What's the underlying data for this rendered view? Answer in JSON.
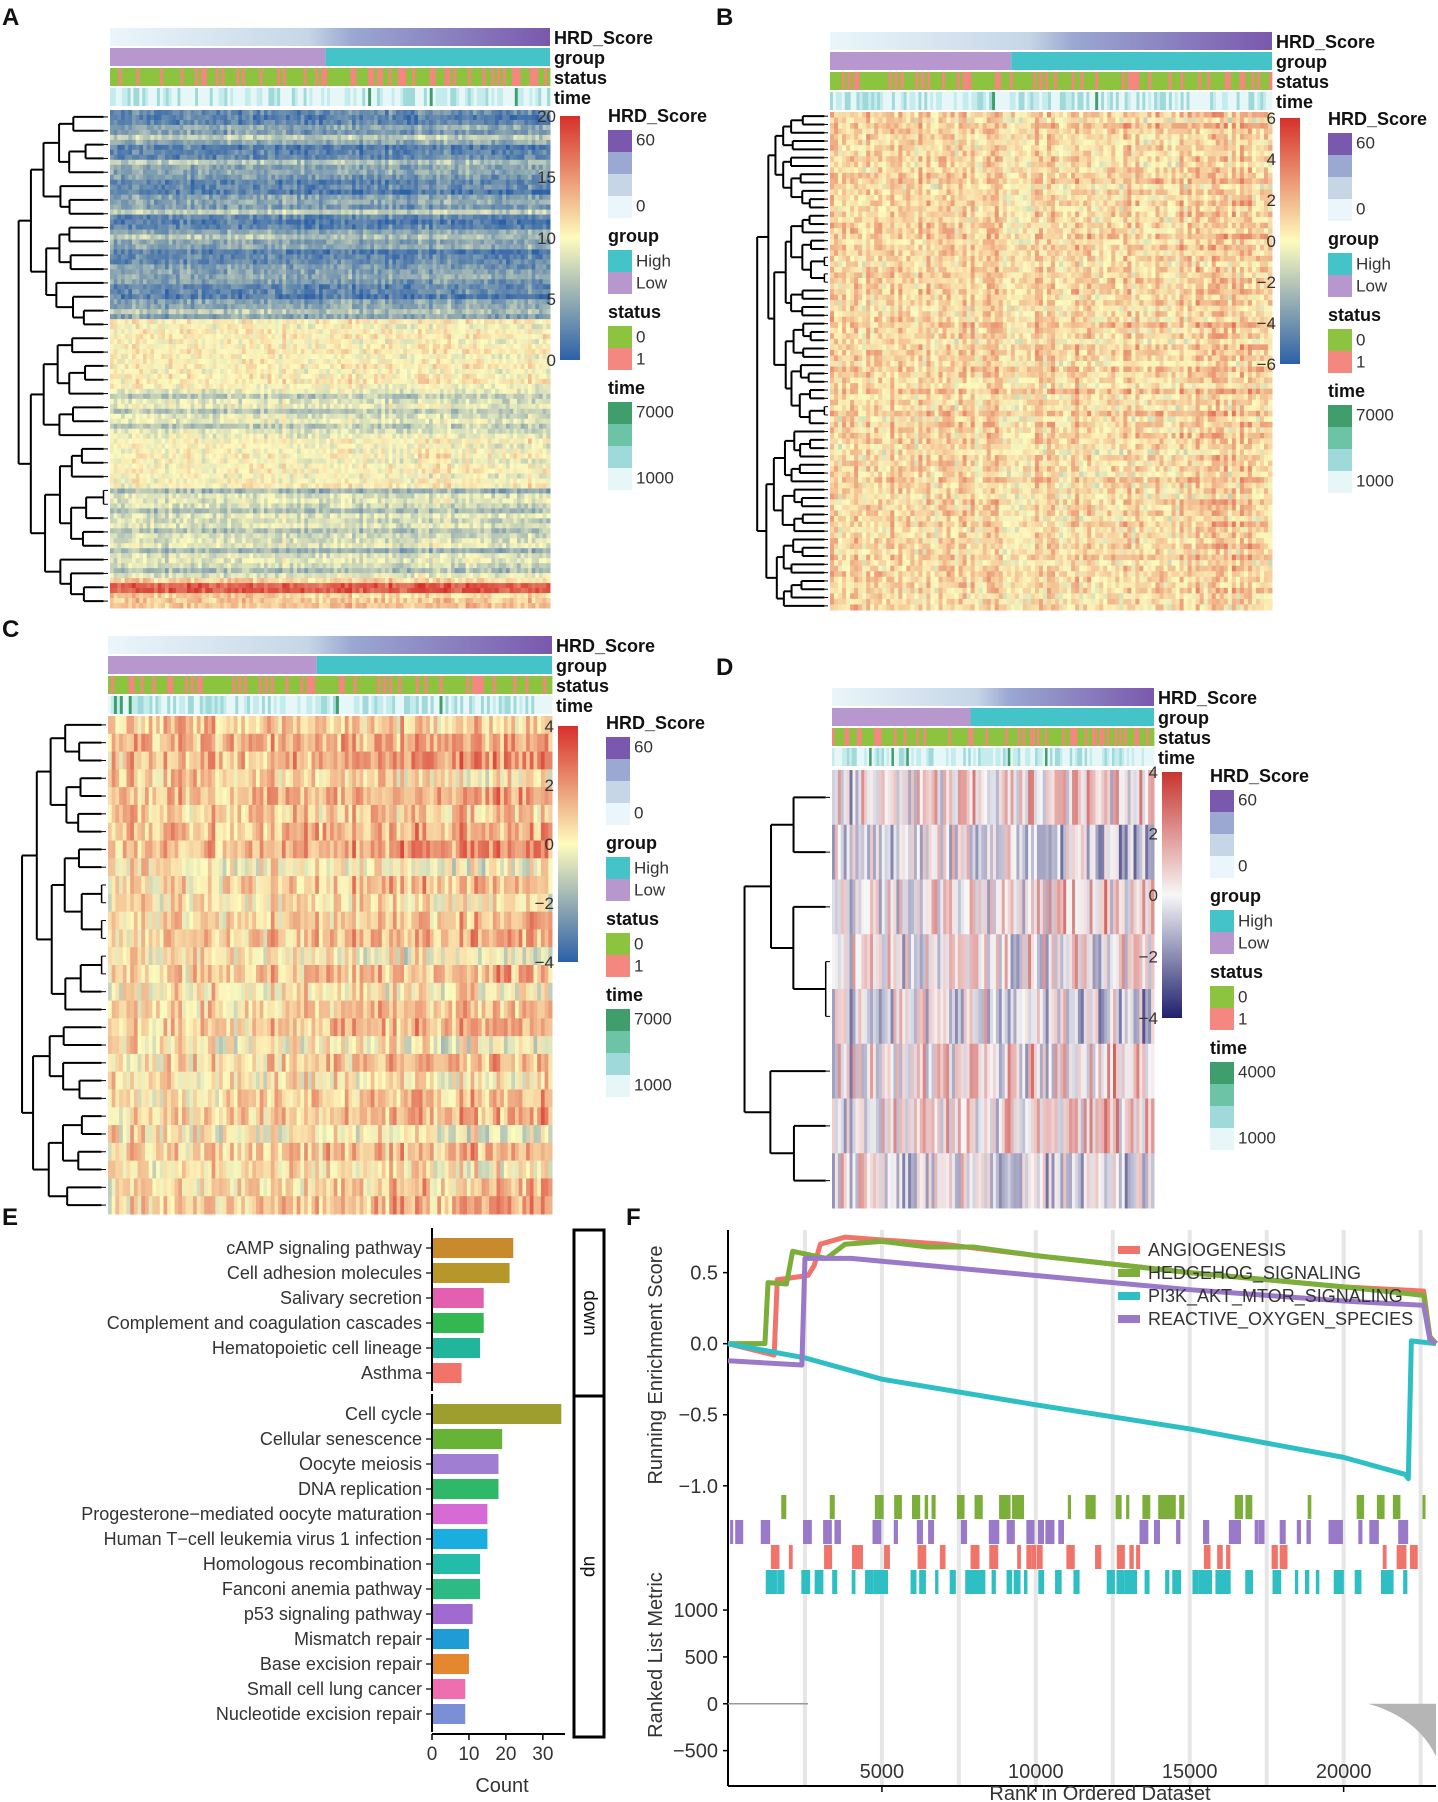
{
  "panels": [
    {
      "id": "A",
      "label": "A"
    },
    {
      "id": "B",
      "label": "B"
    },
    {
      "id": "C",
      "label": "C"
    },
    {
      "id": "D",
      "label": "D"
    },
    {
      "id": "E",
      "label": "E"
    },
    {
      "id": "F",
      "label": "F"
    }
  ],
  "chart_data": [
    {
      "panel": "A",
      "type": "heatmap",
      "annotation_tracks": [
        "HRD_Score",
        "group",
        "status",
        "time"
      ],
      "colorbar": {
        "ticks": [
          "20",
          "15",
          "10",
          "5",
          "0"
        ],
        "range": [
          0,
          20
        ],
        "palette": [
          "#2c60a8",
          "#fefbbe",
          "#d7302a"
        ]
      },
      "legends": [
        {
          "title": "HRD_Score",
          "labels": [
            "60",
            "0"
          ]
        },
        {
          "title": "group",
          "labels": [
            "High",
            "Low"
          ]
        },
        {
          "title": "status",
          "labels": [
            "0",
            "1"
          ]
        },
        {
          "title": "time",
          "labels": [
            "7000",
            "1000"
          ]
        }
      ]
    },
    {
      "panel": "B",
      "type": "heatmap",
      "annotation_tracks": [
        "HRD_Score",
        "group",
        "status",
        "time"
      ],
      "colorbar": {
        "ticks": [
          "6",
          "4",
          "2",
          "0",
          "−2",
          "−4",
          "−6"
        ],
        "range": [
          -6,
          6
        ],
        "palette": [
          "#2c60a8",
          "#fefbbe",
          "#d7302a"
        ]
      },
      "legends": [
        {
          "title": "HRD_Score",
          "labels": [
            "60",
            "0"
          ]
        },
        {
          "title": "group",
          "labels": [
            "High",
            "Low"
          ]
        },
        {
          "title": "status",
          "labels": [
            "0",
            "1"
          ]
        },
        {
          "title": "time",
          "labels": [
            "7000",
            "1000"
          ]
        }
      ]
    },
    {
      "panel": "C",
      "type": "heatmap",
      "annotation_tracks": [
        "HRD_Score",
        "group",
        "status",
        "time"
      ],
      "colorbar": {
        "ticks": [
          "4",
          "2",
          "0",
          "−2",
          "−4"
        ],
        "range": [
          -4,
          4
        ],
        "palette": [
          "#2c60a8",
          "#fefbbe",
          "#d7302a"
        ]
      },
      "legends": [
        {
          "title": "HRD_Score",
          "labels": [
            "60",
            "0"
          ]
        },
        {
          "title": "group",
          "labels": [
            "High",
            "Low"
          ]
        },
        {
          "title": "status",
          "labels": [
            "0",
            "1"
          ]
        },
        {
          "title": "time",
          "labels": [
            "7000",
            "1000"
          ]
        }
      ]
    },
    {
      "panel": "D",
      "type": "heatmap",
      "annotation_tracks": [
        "HRD_Score",
        "group",
        "status",
        "time"
      ],
      "colorbar": {
        "ticks": [
          "4",
          "2",
          "0",
          "−2",
          "−4"
        ],
        "range": [
          -4,
          4
        ],
        "palette": [
          "#1f1f6e",
          "#f7f7f7",
          "#c8342f"
        ]
      },
      "legends": [
        {
          "title": "HRD_Score",
          "labels": [
            "60",
            "0"
          ]
        },
        {
          "title": "group",
          "labels": [
            "High",
            "Low"
          ]
        },
        {
          "title": "status",
          "labels": [
            "0",
            "1"
          ]
        },
        {
          "title": "time",
          "labels": [
            "4000",
            "1000"
          ]
        }
      ]
    },
    {
      "panel": "E",
      "type": "bar",
      "orientation": "horizontal",
      "xlabel": "Count",
      "xticks": [
        "0",
        "10",
        "20",
        "30"
      ],
      "xlim": [
        0,
        36
      ],
      "groups": [
        {
          "name": "down",
          "items": [
            {
              "label": "cAMP signaling pathway",
              "value": 22,
              "color": "#c98a2c"
            },
            {
              "label": "Cell adhesion molecules",
              "value": 21,
              "color": "#b8972a"
            },
            {
              "label": "Salivary secretion",
              "value": 14,
              "color": "#e35faf"
            },
            {
              "label": "Complement and coagulation cascades",
              "value": 14,
              "color": "#32b751"
            },
            {
              "label": "Hematopoietic cell lineage",
              "value": 13,
              "color": "#21b59c"
            },
            {
              "label": "Asthma",
              "value": 8,
              "color": "#f0746a"
            }
          ]
        },
        {
          "name": "up",
          "items": [
            {
              "label": "Cell cycle",
              "value": 35,
              "color": "#9e9e2e"
            },
            {
              "label": "Cellular senescence",
              "value": 19,
              "color": "#66b335"
            },
            {
              "label": "Oocyte meiosis",
              "value": 18,
              "color": "#a07fd2"
            },
            {
              "label": "DNA replication",
              "value": 18,
              "color": "#2fb76a"
            },
            {
              "label": "Progesterone−mediated oocyte maturation",
              "value": 15,
              "color": "#d66bd6"
            },
            {
              "label": "Human T−cell leukemia virus 1 infection",
              "value": 15,
              "color": "#1aaee0"
            },
            {
              "label": "Homologous recombination",
              "value": 13,
              "color": "#22bca8"
            },
            {
              "label": "Fanconi anemia pathway",
              "value": 13,
              "color": "#2dbb85"
            },
            {
              "label": "p53 signaling pathway",
              "value": 11,
              "color": "#a06ad0"
            },
            {
              "label": "Mismatch repair",
              "value": 10,
              "color": "#1f9bd6"
            },
            {
              "label": "Base excision repair",
              "value": 10,
              "color": "#e5872e"
            },
            {
              "label": "Small cell lung cancer",
              "value": 9,
              "color": "#ef6eb0"
            },
            {
              "label": "Nucleotide excision repair",
              "value": 9,
              "color": "#7b8fd6"
            }
          ]
        }
      ]
    },
    {
      "panel": "F",
      "type": "line",
      "title": "",
      "ylabel": "Running Enrichment Score",
      "ylabel2": "Ranked List Metric",
      "xlabel": "Rank in Ordered Dataset",
      "xticks": [
        "5000",
        "10000",
        "15000",
        "20000"
      ],
      "yticks": [
        "0.5",
        "0.0",
        "−0.5",
        "−1.0"
      ],
      "yticks2": [
        "1000",
        "500",
        "0",
        "−500"
      ],
      "xlim": [
        0,
        23000
      ],
      "ylim": [
        -1.1,
        0.8
      ],
      "legend_position": "top-right",
      "series": [
        {
          "name": "ANGIOGENESIS",
          "color": "#f0746a",
          "x": [
            0,
            1500,
            1600,
            2600,
            2800,
            3000,
            3800,
            5000,
            7000,
            10000,
            15000,
            20000,
            22600,
            22800,
            23000
          ],
          "y": [
            0.0,
            -0.08,
            0.45,
            0.48,
            0.55,
            0.7,
            0.75,
            0.73,
            0.7,
            0.62,
            0.5,
            0.4,
            0.37,
            0.05,
            0.0
          ]
        },
        {
          "name": "HEDGEHOG_SIGNALING",
          "color": "#7cae3a",
          "x": [
            0,
            1200,
            1300,
            1900,
            2100,
            3200,
            3800,
            5000,
            6500,
            8000,
            10000,
            15000,
            20000,
            22600,
            22800,
            23000
          ],
          "y": [
            0.0,
            0.0,
            0.43,
            0.42,
            0.65,
            0.6,
            0.7,
            0.72,
            0.68,
            0.68,
            0.62,
            0.5,
            0.4,
            0.34,
            0.05,
            0.0
          ]
        },
        {
          "name": "PI3K_AKT_MTOR_SIGNALING",
          "color": "#2ebfc4",
          "x": [
            0,
            1000,
            2000,
            2500,
            5000,
            10000,
            15000,
            20000,
            22000,
            22100,
            22200,
            23000
          ],
          "y": [
            0.0,
            -0.04,
            -0.08,
            -0.1,
            -0.25,
            -0.43,
            -0.6,
            -0.8,
            -0.92,
            -0.95,
            0.02,
            0.0
          ]
        },
        {
          "name": "REACTIVE_OXYGEN_SPECIES",
          "color": "#9a79c8",
          "x": [
            0,
            2400,
            2500,
            4000,
            5000,
            10000,
            15000,
            20000,
            22600,
            22800,
            23000
          ],
          "y": [
            -0.12,
            -0.15,
            0.6,
            0.6,
            0.58,
            0.48,
            0.38,
            0.3,
            0.27,
            0.03,
            0.0
          ]
        }
      ]
    }
  ]
}
